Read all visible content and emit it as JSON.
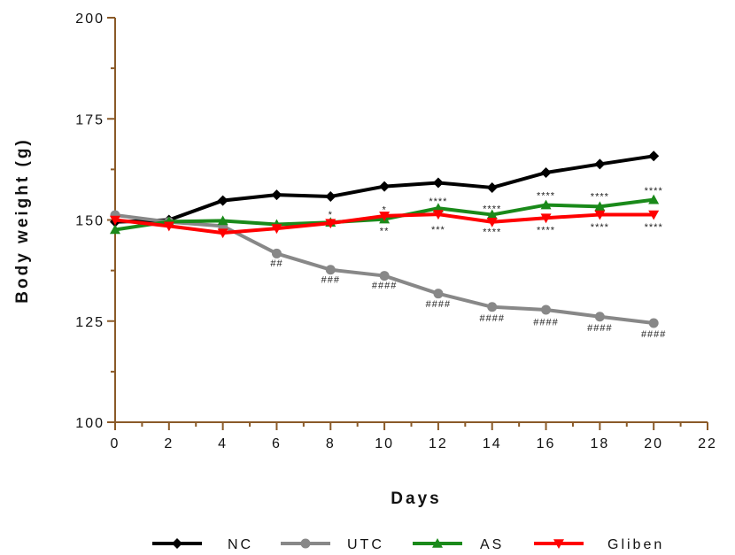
{
  "chart_data": {
    "type": "line",
    "title": "",
    "xlabel": "Days",
    "ylabel": "Body weight (g)",
    "xlim": [
      0,
      22
    ],
    "ylim": [
      100,
      200
    ],
    "x_ticks": [
      "0",
      "2",
      "4",
      "6",
      "8",
      "10",
      "12",
      "14",
      "16",
      "18",
      "20",
      "22"
    ],
    "y_ticks": [
      "100",
      "125",
      "150",
      "175",
      "200"
    ],
    "x": [
      0,
      2,
      4,
      6,
      8,
      10,
      12,
      14,
      16,
      18,
      20
    ],
    "series": [
      {
        "name": "NC",
        "color": "#000000",
        "marker": "diamond",
        "values": [
          149.5,
          150.0,
          154.8,
          156.2,
          155.8,
          158.3,
          159.2,
          158.0,
          161.7,
          163.8,
          165.8
        ]
      },
      {
        "name": "UTC",
        "color": "#888888",
        "marker": "circle",
        "values": [
          151.2,
          149.5,
          148.5,
          141.7,
          137.7,
          136.2,
          131.8,
          128.5,
          127.8,
          126.1,
          124.5
        ]
      },
      {
        "name": "AS",
        "color": "#1a8a1a",
        "marker": "triangle-up",
        "values": [
          147.6,
          149.6,
          149.8,
          148.9,
          149.4,
          150.2,
          152.9,
          151.3,
          153.7,
          153.3,
          155.0
        ]
      },
      {
        "name": "Gliben",
        "color": "#ff0000",
        "marker": "triangle-down",
        "values": [
          150.0,
          148.5,
          146.8,
          147.9,
          149.2,
          151.0,
          151.4,
          149.5,
          150.5,
          151.3,
          151.3
        ]
      }
    ],
    "annotations": [
      {
        "text": "##",
        "x": 6,
        "y": 138.5
      },
      {
        "text": "###",
        "x": 8,
        "y": 134.5
      },
      {
        "text": "####",
        "x": 10,
        "y": 133.0
      },
      {
        "text": "####",
        "x": 12,
        "y": 128.5
      },
      {
        "text": "####",
        "x": 14,
        "y": 125.0
      },
      {
        "text": "####",
        "x": 16,
        "y": 124.0
      },
      {
        "text": "####",
        "x": 18,
        "y": 122.5
      },
      {
        "text": "####",
        "x": 20,
        "y": 121.0
      },
      {
        "text": "*",
        "x": 8,
        "y": 150.5
      },
      {
        "text": "*",
        "x": 10,
        "y": 151.8
      },
      {
        "text": "**",
        "x": 10,
        "y": 146.5
      },
      {
        "text": "****",
        "x": 12,
        "y": 153.8
      },
      {
        "text": "***",
        "x": 12,
        "y": 146.8
      },
      {
        "text": "****",
        "x": 14,
        "y": 152.0
      },
      {
        "text": "****",
        "x": 14,
        "y": 146.3
      },
      {
        "text": "****",
        "x": 16,
        "y": 155.2
      },
      {
        "text": "****",
        "x": 16,
        "y": 146.7
      },
      {
        "text": "****",
        "x": 18,
        "y": 155.0
      },
      {
        "text": "****",
        "x": 18,
        "y": 147.5
      },
      {
        "text": "****",
        "x": 20,
        "y": 156.5
      },
      {
        "text": "****",
        "x": 20,
        "y": 147.5
      }
    ],
    "legend_position": "bottom",
    "grid": false
  }
}
